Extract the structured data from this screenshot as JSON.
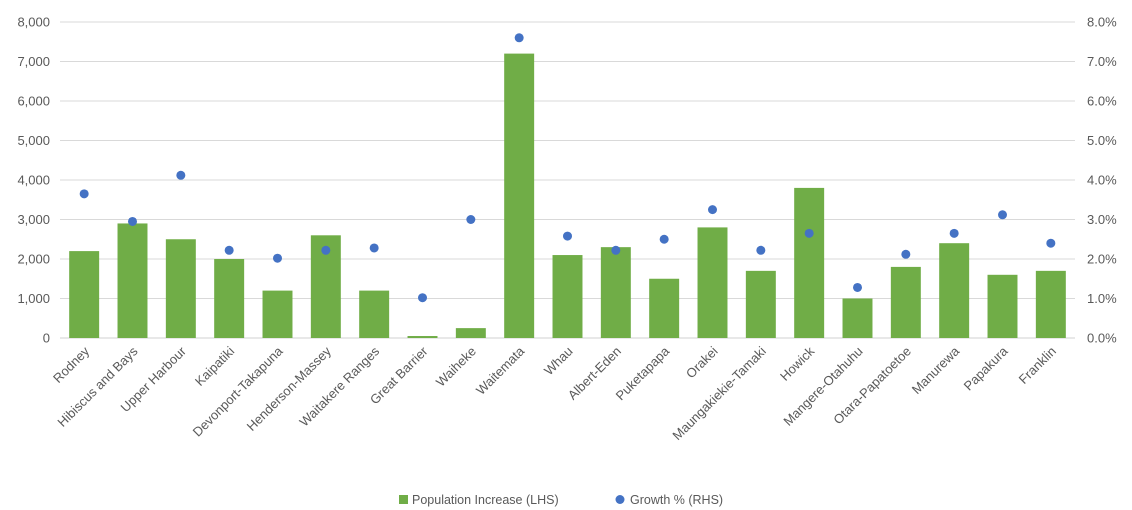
{
  "chart_data": {
    "type": "bar",
    "categories": [
      "Rodney",
      "Hibiscus and Bays",
      "Upper Harbour",
      "Kaipatiki",
      "Devonport-Takapuna",
      "Henderson-Massey",
      "Waitakere Ranges",
      "Great Barrier",
      "Waiheke",
      "Waitemata",
      "Whau",
      "Albert-Eden",
      "Puketapapa",
      "Orakei",
      "Maungakiekie-Tamaki",
      "Howick",
      "Mangere-Otahuhu",
      "Otara-Papatoetoe",
      "Manurewa",
      "Papakura",
      "Franklin"
    ],
    "series": [
      {
        "name": "Population Increase (LHS)",
        "type": "bar",
        "axis": "left",
        "color": "#70ad47",
        "values": [
          2200,
          2900,
          2500,
          2000,
          1200,
          2600,
          1200,
          50,
          250,
          7200,
          2100,
          2300,
          1500,
          2800,
          1700,
          3800,
          1000,
          1800,
          2400,
          1600,
          1700
        ]
      },
      {
        "name": "Growth % (RHS)",
        "type": "scatter",
        "axis": "right",
        "color": "#4472c4",
        "values": [
          3.65,
          2.95,
          4.12,
          2.22,
          2.02,
          2.22,
          2.28,
          1.02,
          3.0,
          7.6,
          2.58,
          2.22,
          2.5,
          3.25,
          2.22,
          2.65,
          1.28,
          2.12,
          2.65,
          3.12,
          2.4
        ]
      }
    ],
    "y_left": {
      "ylim": [
        0,
        8000
      ],
      "ticks": [
        "0",
        "1,000",
        "2,000",
        "3,000",
        "4,000",
        "5,000",
        "6,000",
        "7,000",
        "8,000"
      ]
    },
    "y_right": {
      "ylim": [
        0,
        8
      ],
      "ticks": [
        "0.0%",
        "1.0%",
        "2.0%",
        "3.0%",
        "4.0%",
        "5.0%",
        "6.0%",
        "7.0%",
        "8.0%"
      ]
    },
    "grid": true,
    "legend_position": "bottom"
  }
}
